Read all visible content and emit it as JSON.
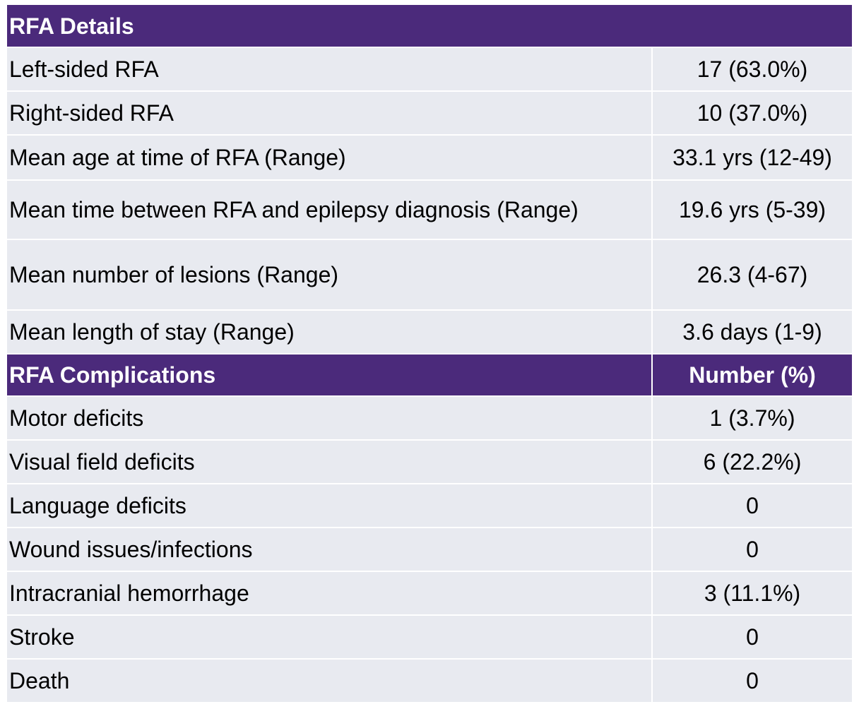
{
  "details": {
    "title": "RFA Details",
    "rows": [
      {
        "label": "Left-sided RFA",
        "value": "17 (63.0%)"
      },
      {
        "label": "Right-sided RFA",
        "value": "10 (37.0%)"
      },
      {
        "label": "Mean age at time of RFA (Range)",
        "value": "33.1 yrs (12-49)"
      },
      {
        "label": "Mean time between RFA and epilepsy diagnosis (Range)",
        "value": "19.6 yrs (5-39)"
      },
      {
        "label": "Mean number of lesions (Range)",
        "value": "26.3 (4-67)"
      },
      {
        "label": "Mean length of stay (Range)",
        "value": "3.6 days (1-9)"
      }
    ]
  },
  "complications": {
    "title": "RFA Complications",
    "column_header": "Number (%)",
    "rows": [
      {
        "label": "Motor deficits",
        "value": "1 (3.7%)"
      },
      {
        "label": "Visual field deficits",
        "value": "6 (22.2%)"
      },
      {
        "label": "Language deficits",
        "value": "0"
      },
      {
        "label": "Wound issues/infections",
        "value": "0"
      },
      {
        "label": "Intracranial hemorrhage",
        "value": "3 (11.1%)"
      },
      {
        "label": "Stroke",
        "value": "0"
      },
      {
        "label": "Death",
        "value": "0"
      }
    ]
  },
  "colors": {
    "header_bg": "#4b2a7b",
    "row_bg": "#e8eaf0"
  }
}
